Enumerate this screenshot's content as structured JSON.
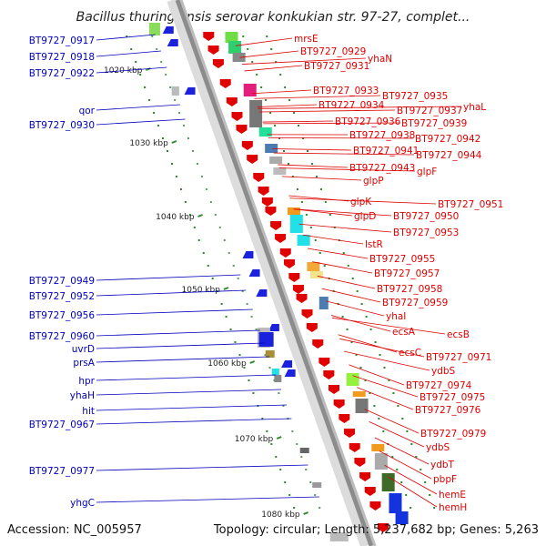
{
  "title": "Bacillus thuringiensis serovar konkukian str. 97-27, complet...",
  "footer": {
    "accession": "Accession: NC_005957",
    "topology": "Topology: circular; Length: 5,237,682 bp; Genes: 5,263"
  },
  "colors": {
    "left_labels": "#0000bb",
    "right_labels": "#dd0000",
    "backbone": "#999999"
  },
  "ticks": [
    "1020 kbp",
    "1030 kbp",
    "1040 kbp",
    "1050 kbp",
    "1060 kbp",
    "1070 kbp",
    "1080 kbp"
  ],
  "left_labels": [
    "BT9727_0917",
    "BT9727_0918",
    "BT9727_0922",
    "qor",
    "BT9727_0930",
    "BT9727_0949",
    "BT9727_0952",
    "BT9727_0956",
    "BT9727_0960",
    "uvrD",
    "prsA",
    "hpr",
    "yhaH",
    "hit",
    "BT9727_0967",
    "BT9727_0977",
    "yhgC"
  ],
  "right_labels": [
    "mrsE",
    "BT9727_0929",
    "yhaN",
    "BT9727_0931",
    "BT9727_0933",
    "BT9727_0935",
    "BT9727_0934",
    "BT9727_0937",
    "yhaL",
    "BT9727_0936",
    "BT9727_0939",
    "BT9727_0938",
    "BT9727_0942",
    "BT9727_0941",
    "BT9727_0944",
    "BT9727_0943",
    "glpF",
    "glpP",
    "BT9727_0951",
    "glpK",
    "glpD",
    "BT9727_0950",
    "BT9727_0953",
    "lstR",
    "BT9727_0955",
    "BT9727_0957",
    "BT9727_0958",
    "BT9727_0959",
    "yhaI",
    "ecsA",
    "ecsB",
    "ecsC",
    "BT9727_0971",
    "ydbS",
    "BT9727_0974",
    "BT9727_0975",
    "BT9727_0976",
    "BT9727_0979",
    "ydbS",
    "ydbT",
    "pbpF",
    "hemE",
    "hemH"
  ]
}
